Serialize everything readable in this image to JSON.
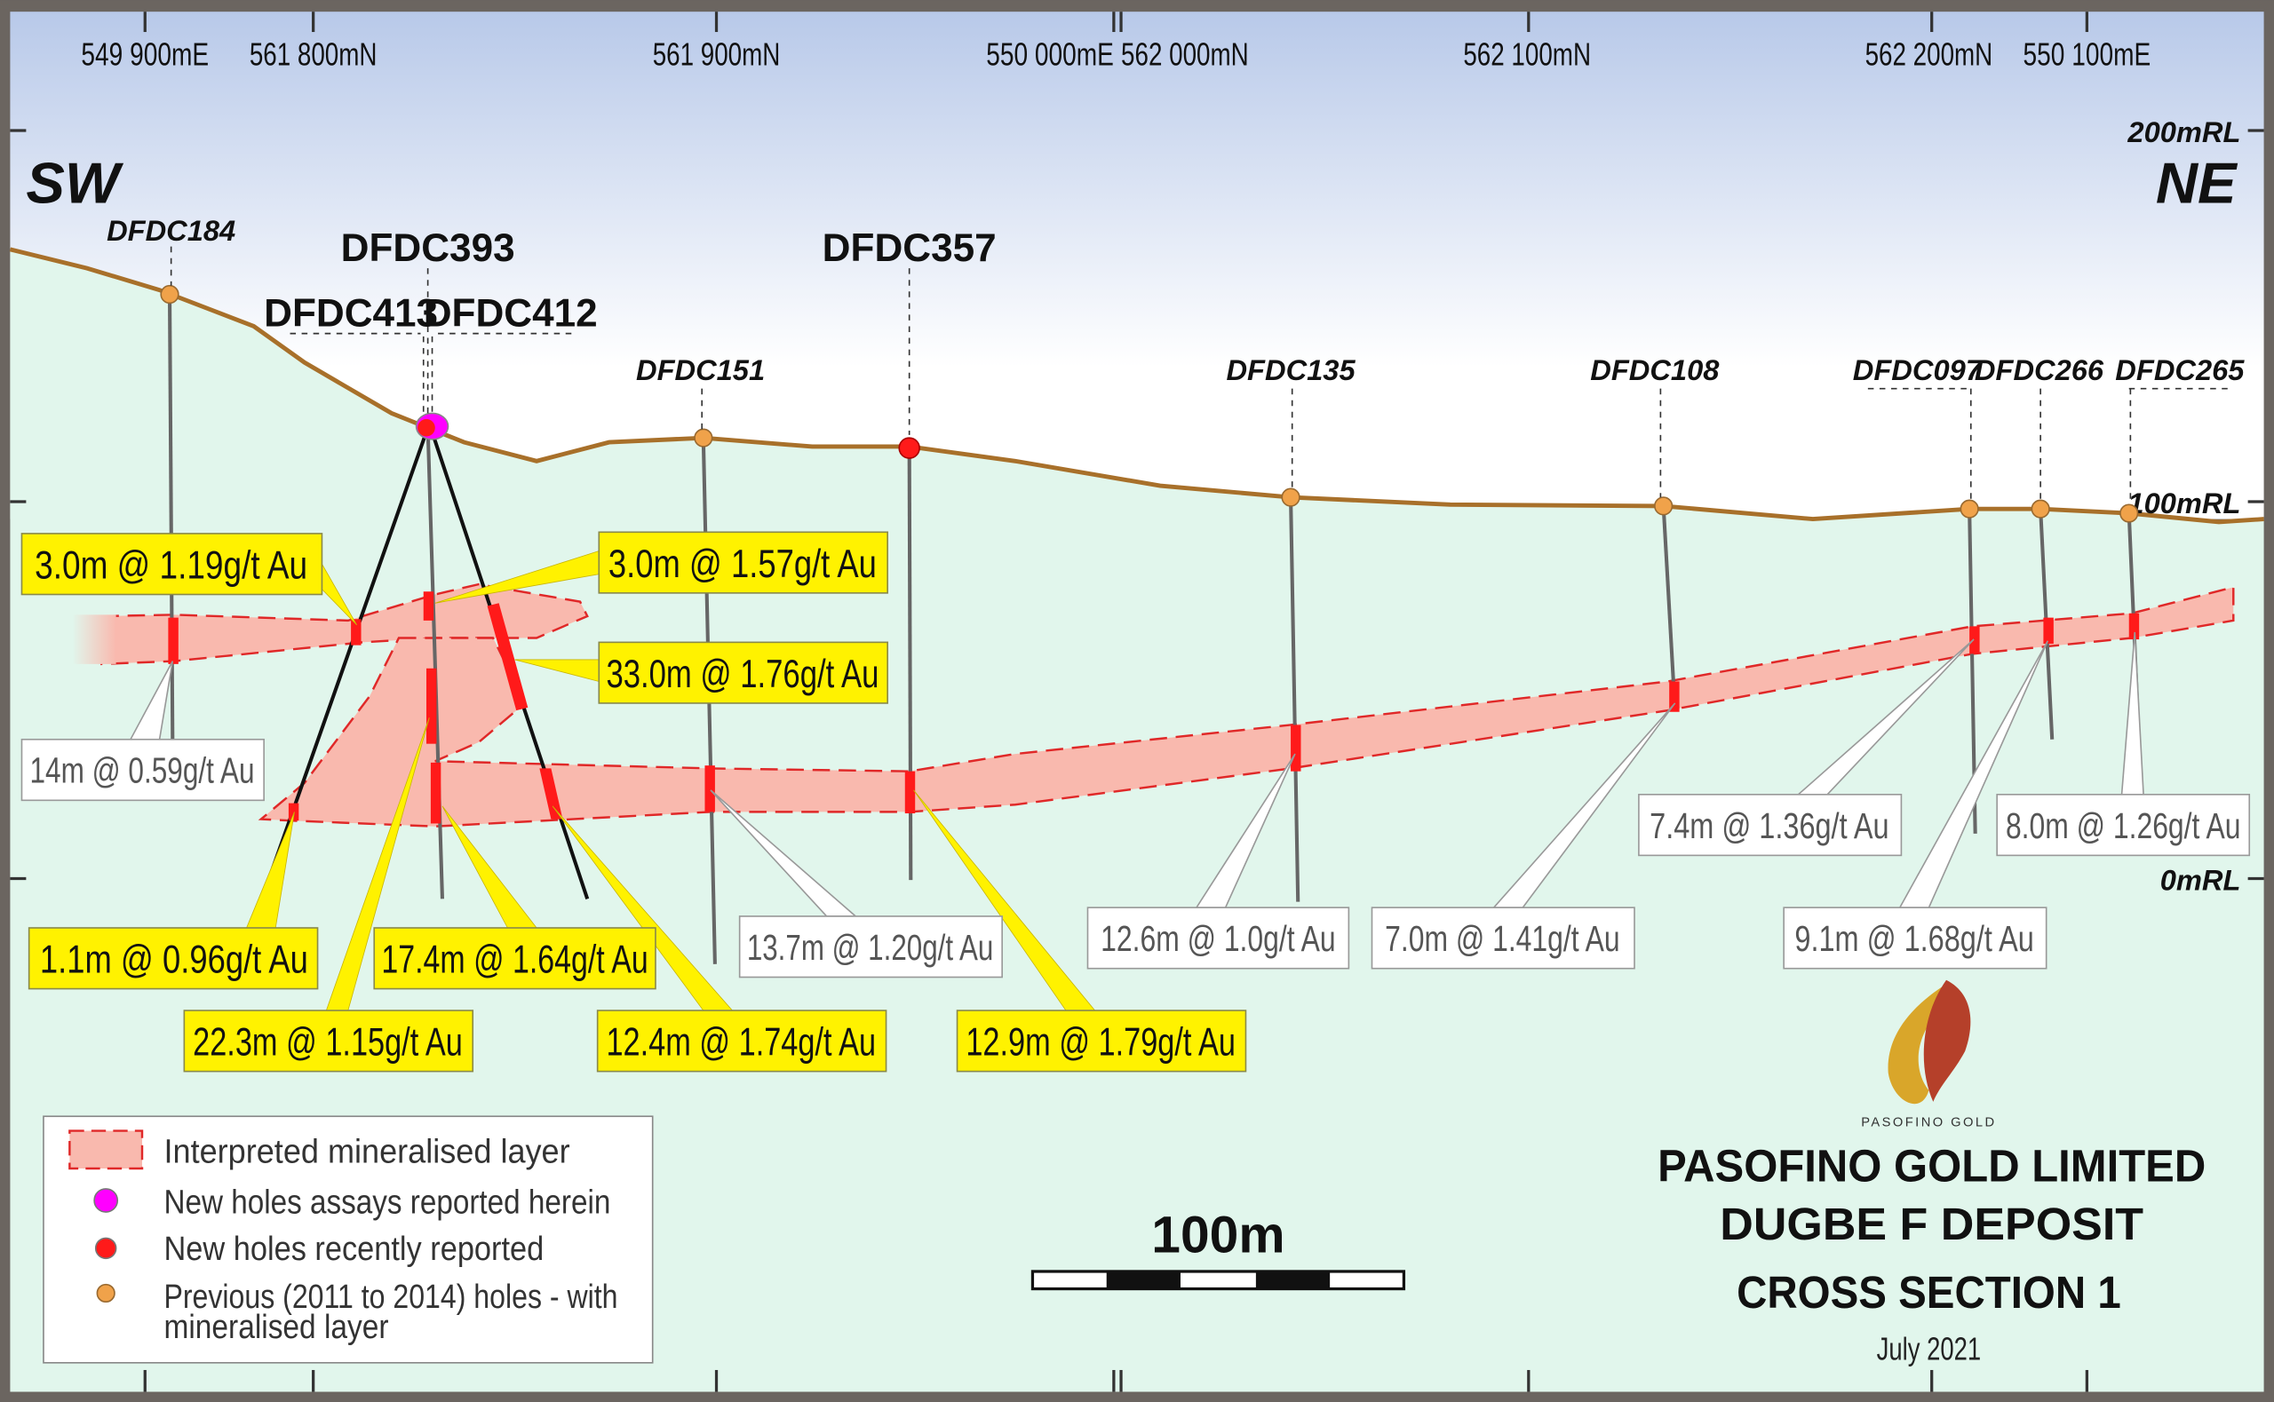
{
  "section": {
    "title": "PASOFINO GOLD LIMITED",
    "subtitle": "DUGBE F DEPOSIT",
    "section_name": "CROSS SECTION 1",
    "date": "July 2021",
    "logo_text": "PASOFINO GOLD"
  },
  "directions": {
    "left": "SW",
    "right": "NE"
  },
  "grid_labels": [
    "549 900mE",
    "561 800mN",
    "561 900mN",
    "550 000mE",
    "562 000mN",
    "562 100mN",
    "562 200mN",
    "550 100mE"
  ],
  "elevation_labels": [
    "200mRL",
    "100mRL",
    "0mRL"
  ],
  "scale_bar": {
    "label": "100m"
  },
  "holes": [
    {
      "name": "DFDC184",
      "type": "previous"
    },
    {
      "name": "DFDC393",
      "type": "new-assays"
    },
    {
      "name": "DFDC413",
      "type": "new-assays"
    },
    {
      "name": "DFDC412",
      "type": "new-assays"
    },
    {
      "name": "DFDC357",
      "type": "recent"
    },
    {
      "name": "DFDC151",
      "type": "previous"
    },
    {
      "name": "DFDC135",
      "type": "previous"
    },
    {
      "name": "DFDC108",
      "type": "previous"
    },
    {
      "name": "DFDC097",
      "type": "previous"
    },
    {
      "name": "DFDC266",
      "type": "previous"
    },
    {
      "name": "DFDC265",
      "type": "previous"
    }
  ],
  "intercepts_new": [
    "3.0m @ 1.19g/t Au",
    "3.0m @ 1.57g/t Au",
    "33.0m @ 1.76g/t Au",
    "1.1m @ 0.96g/t Au",
    "17.4m @ 1.64g/t Au",
    "22.3m @ 1.15g/t Au",
    "12.4m @ 1.74g/t Au",
    "12.9m @ 1.79g/t Au"
  ],
  "intercepts_previous": [
    "14m @ 0.59g/t Au",
    "13.7m @ 1.20g/t Au",
    "12.6m @ 1.0g/t Au",
    "7.0m @ 1.41g/t Au",
    "7.4m @ 1.36g/t Au",
    "9.1m @ 1.68g/t Au",
    "8.0m @ 1.26g/t Au"
  ],
  "legend": [
    {
      "label": "Interpreted mineralised layer",
      "icon": "pink-dashed-rectangle"
    },
    {
      "label": "New holes assays reported herein",
      "icon": "magenta-dot"
    },
    {
      "label": "New holes recently reported",
      "icon": "red-dot"
    },
    {
      "label": "Previous (2011 to 2014) holes - with",
      "label2": "mineralised layer",
      "icon": "orange-dot"
    }
  ],
  "colors": {
    "mineralised_fill": "#f9b9ae",
    "mineralised_edge": "#e02828",
    "topography": "#a8702a",
    "new_highlight": "#fff200",
    "magenta": "#ff00ff",
    "red": "#ff1a1a",
    "orange": "#f0a24a",
    "ground": "#e1f6ec",
    "sky": "#b8c9e9"
  }
}
